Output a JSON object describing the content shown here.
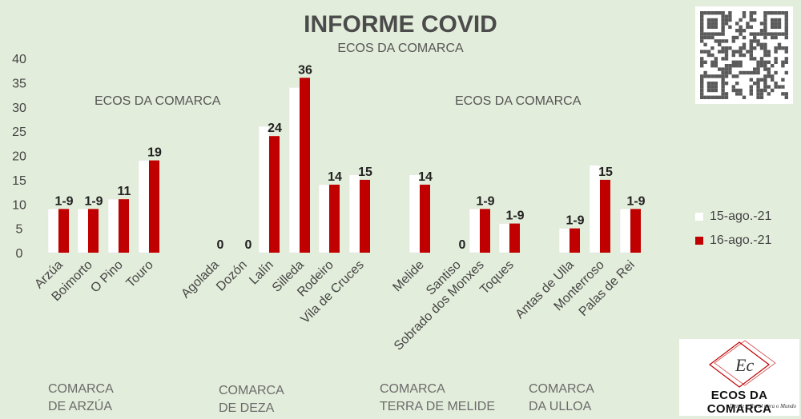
{
  "header": {
    "title": "INFORME COVID",
    "subtitle": "ECOS DA COMARCA"
  },
  "watermarks": [
    "ECOS DA COMARCA",
    "ECOS DA COMARCA"
  ],
  "groups": [
    {
      "line1": "COMARCA",
      "line2": "DE ARZÚA"
    },
    {
      "line1": "COMARCA",
      "line2": "DE DEZA"
    },
    {
      "line1": "COMARCA",
      "line2": "TERRA DE MELIDE"
    },
    {
      "line1": "COMARCA",
      "line2": "DA ULLOA"
    }
  ],
  "logo": {
    "initials": "Ec",
    "name": "ECOS DA COMARCA",
    "tagline": "Dende o Rural para o Mundo"
  },
  "chart_data": {
    "type": "bar",
    "title": "INFORME COVID",
    "subtitle": "ECOS DA COMARCA",
    "ylim": [
      0,
      40
    ],
    "yticks": [
      0,
      5,
      10,
      15,
      20,
      25,
      30,
      35,
      40
    ],
    "grid": false,
    "legend_position": "right",
    "categories": [
      "Arzúa",
      "Boimorto",
      "O Pino",
      "Touro",
      "Agolada",
      "Dozón",
      "Lalín",
      "Silleda",
      "Rodeiro",
      "Vila de Cruces",
      "Melide",
      "Santiso",
      "Sobrado dos Monxes",
      "Toques",
      "Antas de Ulla",
      "Monterroso",
      "Palas de Rei"
    ],
    "series": [
      {
        "name": "15-ago.-21",
        "color": "#ffffff",
        "values": [
          9,
          9,
          11,
          19,
          0,
          0,
          26,
          34,
          14,
          16,
          16,
          0,
          9,
          6,
          5,
          18,
          9
        ]
      },
      {
        "name": "16-ago.-21",
        "color": "#c00000",
        "values": [
          9,
          9,
          11,
          19,
          0,
          0,
          24,
          36,
          14,
          15,
          14,
          0,
          9,
          6,
          5,
          15,
          9
        ]
      }
    ],
    "data_labels": [
      "1-9",
      "1-9",
      "11",
      "19",
      "0",
      "0",
      "24",
      "36",
      "14",
      "15",
      "14",
      "0",
      "1-9",
      "1-9",
      "1-9",
      "15",
      "1-9"
    ]
  }
}
